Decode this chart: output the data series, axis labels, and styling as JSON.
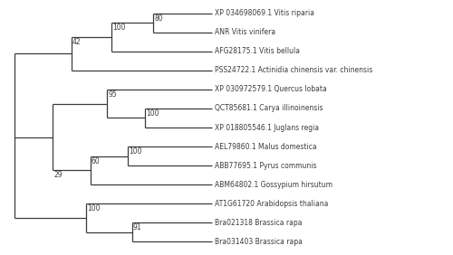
{
  "taxa": [
    "XP 034698069.1 Vitis riparia",
    "ANR Vitis vinifera",
    "AFG28175.1 Vitis bellula",
    "PSS24722.1 Actinidia chinensis var. chinensis",
    "XP 030972579.1 Quercus lobata",
    "QCT85681.1 Carya illinoinensis",
    "XP 018805546.1 Juglans regia",
    "AEL79860.1 Malus domestica",
    "ABB77695.1 Pyrus communis",
    "ABM64802.1 Gossypium hirsutum",
    "AT1G61720 Arabidopsis thaliana",
    "Bra021318 Brassica rapa",
    "Bra031403 Brassica rapa"
  ],
  "background_color": "#ffffff",
  "line_color": "#3c3c3c",
  "text_color": "#3c3c3c",
  "font_size": 5.5,
  "bootstrap_font_size": 5.5,
  "line_width": 0.9
}
